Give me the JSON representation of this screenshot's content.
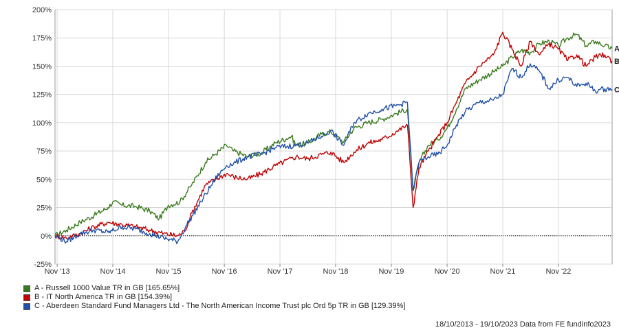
{
  "chart_data": {
    "type": "line",
    "ylim": [
      -25,
      200
    ],
    "yticks": [
      -25,
      0,
      25,
      50,
      75,
      100,
      125,
      150,
      175,
      200
    ],
    "ytick_labels": [
      "-25%",
      "0%",
      "25%",
      "50%",
      "75%",
      "100%",
      "125%",
      "150%",
      "175%",
      "200%"
    ],
    "xlim": [
      "2013-10-18",
      "2023-10-19"
    ],
    "xticks": [
      "2013-11-01",
      "2014-11-01",
      "2015-11-01",
      "2016-11-01",
      "2017-11-01",
      "2018-11-01",
      "2019-11-01",
      "2020-11-01",
      "2021-11-01",
      "2022-11-01"
    ],
    "xtick_labels": [
      "Nov '13",
      "Nov '14",
      "Nov '15",
      "Nov '16",
      "Nov '17",
      "Nov '18",
      "Nov '19",
      "Nov '20",
      "Nov '21",
      "Nov '22"
    ],
    "grid": true,
    "legend_position": "bottom-left",
    "series": [
      {
        "name": "A - Russell 1000 Value TR in GB [165.65%]",
        "end_label": "A",
        "color": "#3a7a1e",
        "x": [
          "2013-10-18",
          "2014-01-01",
          "2014-04-01",
          "2014-07-01",
          "2014-10-01",
          "2014-11-01",
          "2015-01-01",
          "2015-04-01",
          "2015-07-01",
          "2015-09-01",
          "2015-11-01",
          "2016-01-15",
          "2016-04-01",
          "2016-07-01",
          "2016-09-01",
          "2016-11-15",
          "2017-01-01",
          "2017-04-01",
          "2017-07-01",
          "2017-10-01",
          "2018-01-15",
          "2018-02-15",
          "2018-05-01",
          "2018-08-01",
          "2018-10-01",
          "2018-12-24",
          "2019-03-01",
          "2019-06-01",
          "2019-09-01",
          "2019-12-01",
          "2020-02-15",
          "2020-03-23",
          "2020-05-01",
          "2020-07-01",
          "2020-09-01",
          "2020-11-01",
          "2021-01-01",
          "2021-03-01",
          "2021-06-01",
          "2021-09-01",
          "2021-11-01",
          "2022-01-01",
          "2022-03-01",
          "2022-05-01",
          "2022-07-01",
          "2022-09-01",
          "2022-11-01",
          "2023-01-01",
          "2023-03-01",
          "2023-05-01",
          "2023-07-01",
          "2023-09-01",
          "2023-10-19"
        ],
        "values": [
          0,
          5,
          12,
          18,
          25,
          30,
          27,
          26,
          22,
          15,
          27,
          30,
          45,
          65,
          72,
          80,
          75,
          70,
          73,
          82,
          88,
          80,
          82,
          90,
          92,
          83,
          95,
          100,
          103,
          108,
          112,
          40,
          65,
          80,
          85,
          95,
          112,
          130,
          138,
          145,
          150,
          158,
          164,
          162,
          170,
          172,
          168,
          175,
          178,
          168,
          172,
          168,
          165.65
        ]
      },
      {
        "name": "B - IT North America TR in GB [154.39%]",
        "end_label": "B",
        "color": "#c00000",
        "x": [
          "2013-10-18",
          "2014-01-01",
          "2014-04-01",
          "2014-07-01",
          "2014-10-01",
          "2015-01-01",
          "2015-04-01",
          "2015-07-01",
          "2015-10-01",
          "2016-01-01",
          "2016-02-15",
          "2016-04-01",
          "2016-07-01",
          "2016-11-15",
          "2017-01-01",
          "2017-04-01",
          "2017-07-01",
          "2017-10-01",
          "2018-02-15",
          "2018-05-01",
          "2018-08-01",
          "2018-10-01",
          "2018-12-24",
          "2019-03-01",
          "2019-06-01",
          "2019-09-01",
          "2019-12-01",
          "2020-02-15",
          "2020-03-23",
          "2020-05-01",
          "2020-07-01",
          "2020-09-01",
          "2020-11-01",
          "2021-01-01",
          "2021-03-01",
          "2021-06-01",
          "2021-09-01",
          "2021-11-01",
          "2022-01-01",
          "2022-03-01",
          "2022-05-01",
          "2022-07-01",
          "2022-09-01",
          "2022-11-01",
          "2023-01-01",
          "2023-03-01",
          "2023-05-01",
          "2023-07-01",
          "2023-09-01",
          "2023-10-19"
        ],
        "values": [
          0,
          -2,
          2,
          8,
          12,
          10,
          8,
          5,
          2,
          0,
          4,
          20,
          45,
          55,
          52,
          50,
          55,
          62,
          70,
          68,
          72,
          74,
          65,
          74,
          82,
          85,
          92,
          98,
          25,
          60,
          75,
          88,
          100,
          118,
          135,
          150,
          160,
          180,
          165,
          150,
          172,
          160,
          170,
          165,
          155,
          160,
          150,
          158,
          160,
          154.39
        ]
      },
      {
        "name": "C - Aberdeen Standard Fund Managers Ltd - The North American Income Trust plc Ord 5p TR in GB [129.39%]",
        "end_label": "C",
        "color": "#1f4fa8",
        "x": [
          "2013-10-18",
          "2014-01-01",
          "2014-04-01",
          "2014-07-01",
          "2014-10-01",
          "2015-01-01",
          "2015-04-01",
          "2015-07-01",
          "2015-10-01",
          "2016-01-01",
          "2016-03-01",
          "2016-06-01",
          "2016-09-01",
          "2016-11-15",
          "2017-01-01",
          "2017-04-01",
          "2017-07-01",
          "2017-10-01",
          "2018-02-15",
          "2018-05-01",
          "2018-08-01",
          "2018-10-01",
          "2018-12-24",
          "2019-03-01",
          "2019-06-01",
          "2019-09-01",
          "2019-12-01",
          "2020-02-15",
          "2020-03-23",
          "2020-05-01",
          "2020-07-01",
          "2020-09-01",
          "2020-11-01",
          "2021-01-01",
          "2021-03-01",
          "2021-06-01",
          "2021-09-01",
          "2021-11-01",
          "2022-01-01",
          "2022-03-01",
          "2022-05-01",
          "2022-07-01",
          "2022-09-01",
          "2022-11-01",
          "2023-01-01",
          "2023-03-01",
          "2023-05-01",
          "2023-07-01",
          "2023-09-01",
          "2023-10-19"
        ],
        "values": [
          0,
          -5,
          2,
          5,
          3,
          8,
          6,
          2,
          -2,
          -5,
          10,
          30,
          50,
          62,
          64,
          70,
          72,
          78,
          80,
          82,
          88,
          93,
          80,
          100,
          108,
          112,
          115,
          118,
          40,
          65,
          70,
          72,
          80,
          98,
          110,
          118,
          120,
          125,
          148,
          140,
          152,
          145,
          130,
          138,
          140,
          132,
          135,
          128,
          130,
          129.39
        ]
      }
    ]
  },
  "legend": {
    "items": [
      "A - Russell 1000 Value TR in GB [165.65%]",
      "B - IT North America TR in GB [154.39%]",
      "C - Aberdeen Standard Fund Managers Ltd - The North American Income Trust plc Ord 5p TR in GB [129.39%]"
    ]
  },
  "footer": {
    "text": "18/10/2013 - 19/10/2023 Data from FE fundinfo2023"
  }
}
